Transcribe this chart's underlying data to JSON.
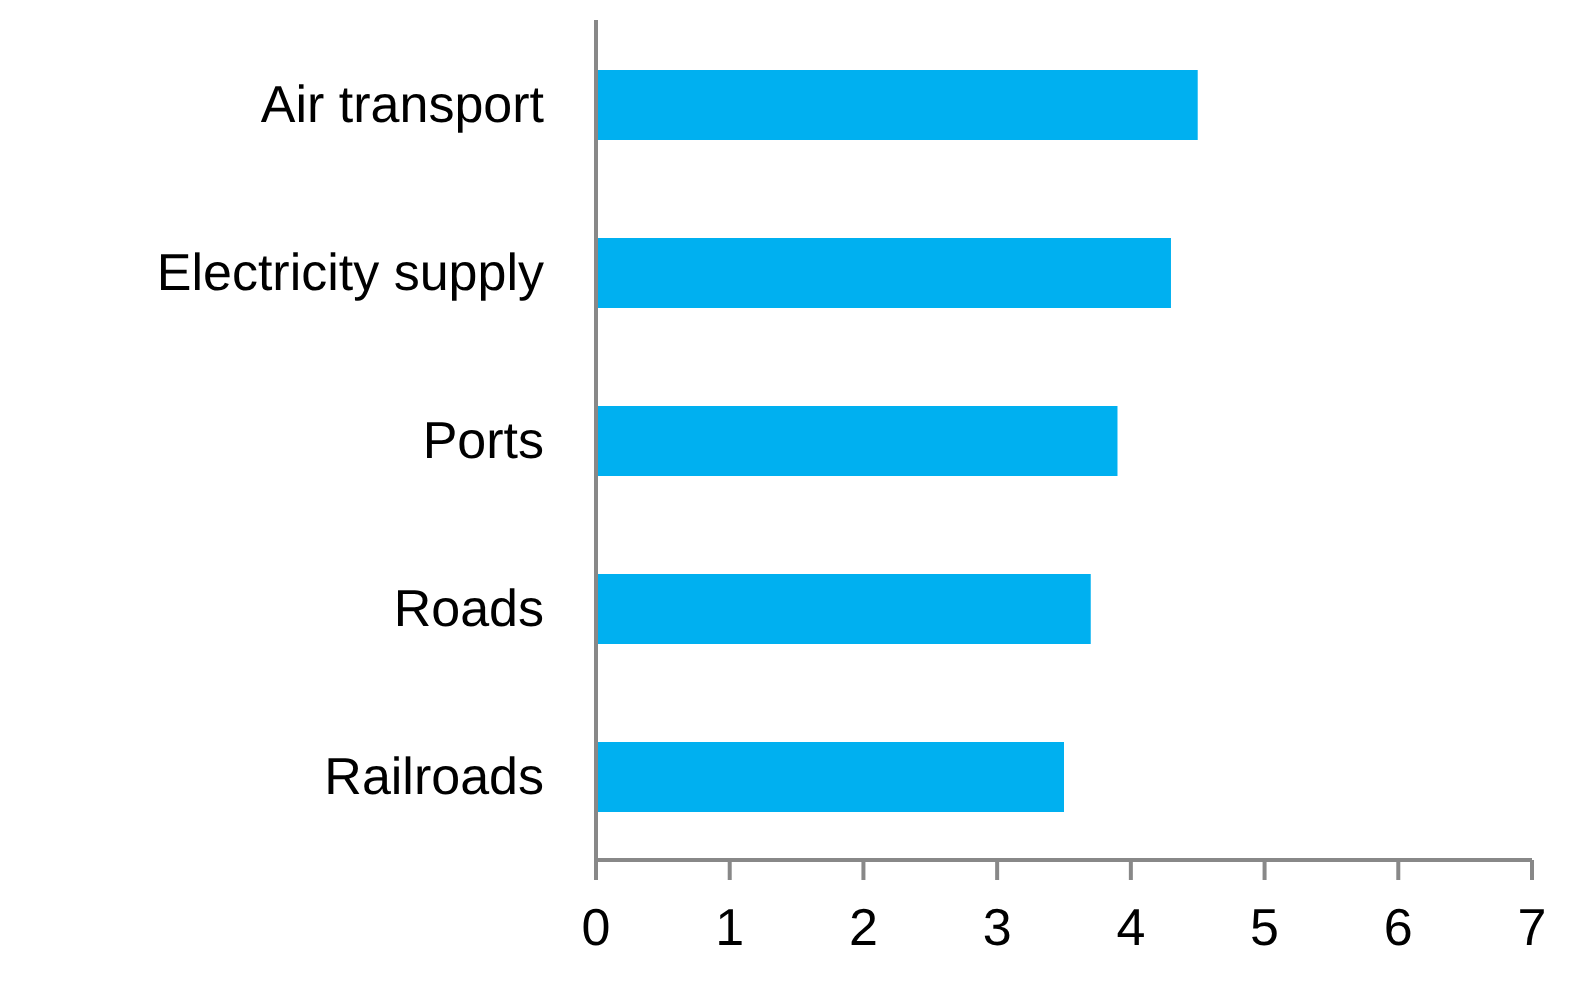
{
  "chart_data": {
    "type": "bar",
    "orientation": "horizontal",
    "categories": [
      "Air transport",
      "Electricity supply",
      "Ports",
      "Roads",
      "Railroads"
    ],
    "values": [
      4.5,
      4.3,
      3.9,
      3.7,
      3.5
    ],
    "color": "#00b0f0",
    "xlim": [
      0,
      7
    ],
    "xticks": [
      0,
      1,
      2,
      3,
      4,
      5,
      6,
      7
    ],
    "grid": false,
    "legend": false
  }
}
